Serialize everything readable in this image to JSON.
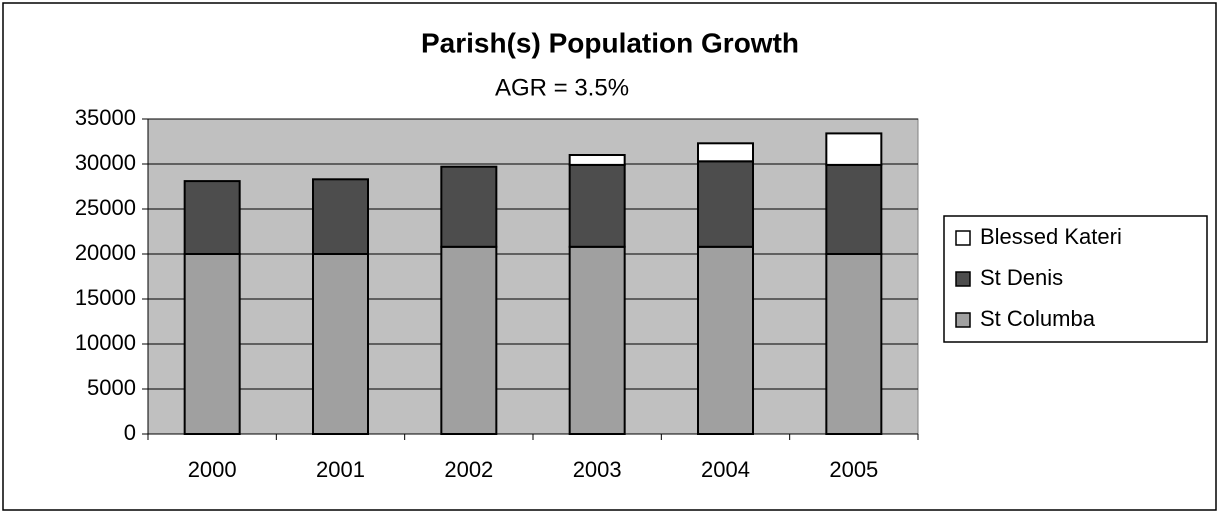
{
  "chart_data": {
    "type": "stacked_bar",
    "title": "Parish(s) Population Growth",
    "subtitle": "AGR = 3.5%",
    "categories": [
      "2000",
      "2001",
      "2002",
      "2003",
      "2004",
      "2005"
    ],
    "series": [
      {
        "name": "St Columba",
        "color": "#a0a0a0",
        "values": [
          20000,
          20000,
          20800,
          20800,
          20800,
          20000
        ]
      },
      {
        "name": "St Denis",
        "color": "#4d4d4d",
        "values": [
          8100,
          8300,
          8900,
          9100,
          9500,
          9900
        ]
      },
      {
        "name": "Blessed Kateri",
        "color": "#ffffff",
        "values": [
          null,
          null,
          null,
          1100,
          2000,
          3500
        ]
      }
    ],
    "ylim": [
      0,
      35000
    ],
    "yticks": [
      0,
      5000,
      10000,
      15000,
      20000,
      25000,
      30000,
      35000
    ],
    "grid": true,
    "legend": "right"
  }
}
